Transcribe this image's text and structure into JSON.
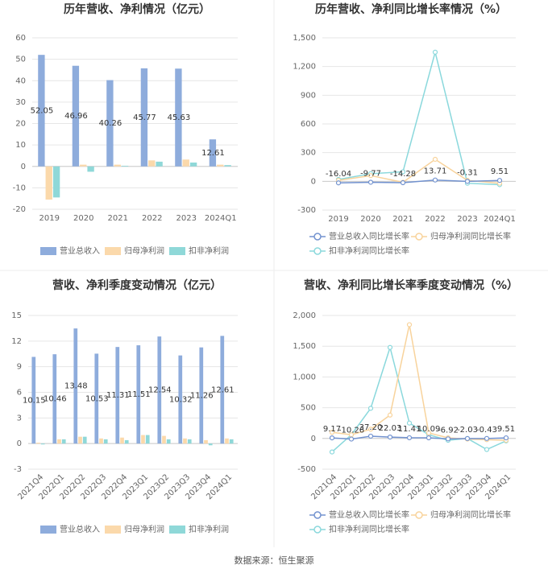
{
  "chart_data": [
    {
      "type": "bar",
      "title": "历年营收、净利情况（亿元）",
      "categories": [
        "2019",
        "2020",
        "2021",
        "2022",
        "2023",
        "2024Q1"
      ],
      "series": [
        {
          "name": "营业总收入",
          "color": "#8eacdc",
          "values": [
            52.05,
            46.96,
            40.26,
            45.77,
            45.63,
            12.61
          ]
        },
        {
          "name": "归母净利润",
          "color": "#fbd9ab",
          "values": [
            -15.5,
            0.8,
            0.8,
            2.8,
            3.2,
            0.8
          ]
        },
        {
          "name": "扣非净利润",
          "color": "#8fd8d8",
          "values": [
            -14.5,
            -2.5,
            0.3,
            2.2,
            1.8,
            0.6
          ]
        }
      ],
      "ylim": [
        -20,
        60
      ],
      "yticks": [
        -20,
        -10,
        0,
        10,
        20,
        30,
        40,
        50,
        60
      ],
      "grid": true,
      "legend": "bottom"
    },
    {
      "type": "line",
      "title": "历年营收、净利同比增长率情况（%）",
      "categories": [
        "2019",
        "2020",
        "2021",
        "2022",
        "2023",
        "2024Q1"
      ],
      "series": [
        {
          "name": "营业总收入同比增长率",
          "color": "#7292cf",
          "values": [
            -16.04,
            -9.77,
            -14.28,
            13.71,
            -0.31,
            9.51
          ]
        },
        {
          "name": "归母净利润同比增长率",
          "color": "#f8d39c",
          "values": [
            10,
            60,
            -10,
            230,
            10,
            -20
          ]
        },
        {
          "name": "扣非净利润同比增长率",
          "color": "#8ad8dc",
          "values": [
            20,
            80,
            100,
            1350,
            -20,
            -35
          ]
        }
      ],
      "ylim": [
        -300,
        1500
      ],
      "yticks": [
        -300,
        0,
        300,
        600,
        900,
        {
          "value": 1200,
          "label": "1,200"
        },
        {
          "value": 1500,
          "label": "1,500"
        }
      ],
      "grid": true,
      "legend": "bottom"
    },
    {
      "type": "bar",
      "title": "营收、净利季度变动情况（亿元）",
      "categories": [
        "2021Q4",
        "2022Q1",
        "2022Q2",
        "2022Q3",
        "2022Q4",
        "2023Q1",
        "2023Q2",
        "2023Q3",
        "2023Q4",
        "2024Q1"
      ],
      "series": [
        {
          "name": "营业总收入",
          "color": "#8eacdc",
          "values": [
            10.15,
            10.46,
            13.48,
            10.53,
            11.31,
            11.51,
            12.54,
            10.32,
            11.26,
            12.61
          ]
        },
        {
          "name": "归母净利润",
          "color": "#fbd9ab",
          "values": [
            0.1,
            0.5,
            0.8,
            0.6,
            0.7,
            1.0,
            0.9,
            0.6,
            0.4,
            0.6
          ]
        },
        {
          "name": "扣非净利润",
          "color": "#8fd8d8",
          "values": [
            -0.1,
            0.5,
            0.8,
            0.5,
            0.4,
            1.0,
            0.5,
            0.5,
            -0.2,
            0.5
          ]
        }
      ],
      "ylim": [
        -3,
        15
      ],
      "yticks": [
        -3,
        0,
        3,
        6,
        9,
        12,
        15
      ],
      "grid": true,
      "legend": "bottom"
    },
    {
      "type": "line",
      "title": "营收、净利同比增长率季度变动情况（%）",
      "categories": [
        "2021Q4",
        "2022Q1",
        "2022Q2",
        "2022Q3",
        "2022Q4",
        "2023Q1",
        "2023Q2",
        "2023Q3",
        "2023Q4",
        "2024Q1"
      ],
      "series": [
        {
          "name": "营业总收入同比增长率",
          "color": "#7292cf",
          "values": [
            9.17,
            -10.26,
            37.2,
            22.03,
            11.41,
            10.09,
            -6.92,
            -2.03,
            -0.43,
            9.51
          ],
          "value_labels": [
            "9.17",
            "-10.26",
            "37.20",
            "22.03",
            "11.41",
            "10.09",
            "-6.92",
            "-2.03",
            "-0.43",
            "9.51"
          ]
        },
        {
          "name": "归母净利润同比增长率",
          "color": "#f8d39c",
          "values": [
            100,
            60,
            150,
            380,
            1850,
            90,
            10,
            -10,
            -20,
            -30
          ]
        },
        {
          "name": "扣非净利润同比增长率",
          "color": "#8ad8dc",
          "values": [
            -220,
            60,
            490,
            1480,
            250,
            60,
            -30,
            0,
            -180,
            -40
          ]
        }
      ],
      "ylim": [
        -500,
        2000
      ],
      "yticks": [
        -500,
        0,
        500,
        {
          "value": 1000,
          "label": "1,000"
        },
        {
          "value": 1500,
          "label": "1,500"
        },
        {
          "value": 2000,
          "label": "2,000"
        }
      ],
      "grid": true,
      "legend": "bottom"
    }
  ],
  "source": "数据来源：恒生聚源"
}
